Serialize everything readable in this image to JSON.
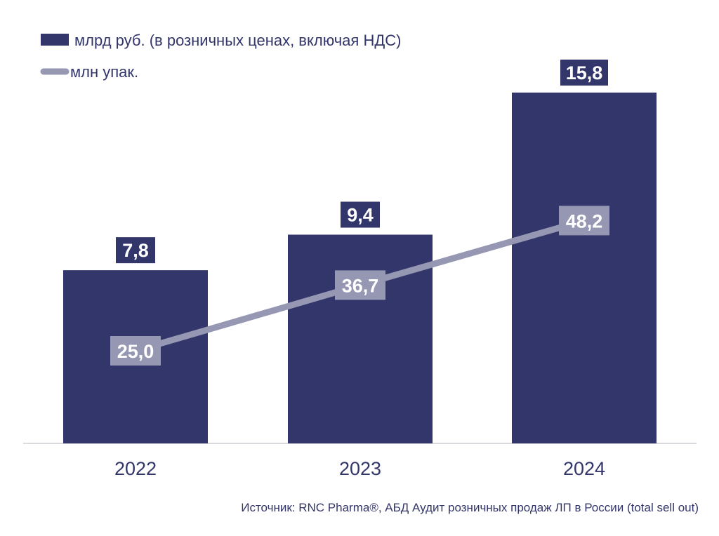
{
  "colors": {
    "bar": "#33366a",
    "line": "#9597b3",
    "axis": "#d9d9df",
    "text": "#33366a"
  },
  "chart_data": {
    "type": "bar",
    "categories": [
      "2022",
      "2023",
      "2024"
    ],
    "series": [
      {
        "name": "млрд руб. (в розничных ценах, включая НДС)",
        "type": "bar",
        "values": [
          7.8,
          9.4,
          15.8
        ],
        "labels": [
          "7,8",
          "9,4",
          "15,8"
        ]
      },
      {
        "name": "млн упак.",
        "type": "line",
        "values": [
          25.0,
          36.7,
          48.2
        ],
        "labels": [
          "25,0",
          "36,7",
          "48,2"
        ]
      }
    ],
    "legend_position": "top-left",
    "source": "Источник: RNC Pharma®, АБД Аудит розничных продаж ЛП в России (total sell out)"
  }
}
